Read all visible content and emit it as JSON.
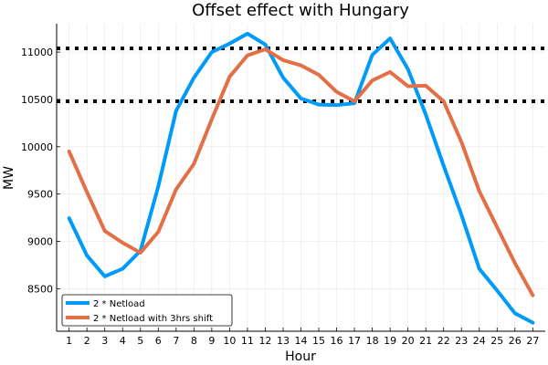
{
  "chart_data": {
    "type": "line",
    "title": "Offset effect with Hungary",
    "xlabel": "Hour",
    "ylabel": "MW",
    "x": [
      1,
      2,
      3,
      4,
      5,
      6,
      7,
      8,
      9,
      10,
      11,
      12,
      13,
      14,
      15,
      16,
      17,
      18,
      19,
      20,
      21,
      22,
      23,
      24,
      25,
      26,
      27
    ],
    "xlim": [
      0.3,
      27.7
    ],
    "ylim": [
      8050,
      11300
    ],
    "yticks": [
      8500,
      9000,
      9500,
      10000,
      10500,
      11000
    ],
    "grid": true,
    "legend_position": "bottom-left",
    "series": [
      {
        "name": "2 * Netload",
        "color": "#009af9",
        "values": [
          9245,
          8850,
          8630,
          8710,
          8900,
          9580,
          10380,
          10730,
          11000,
          11090,
          11195,
          11080,
          10730,
          10510,
          10445,
          10440,
          10460,
          10970,
          11145,
          10820,
          10340,
          9800,
          9280,
          8710,
          8480,
          8240,
          8140
        ]
      },
      {
        "name": "2 * Netload with 3hrs shift",
        "color": "#e26f46",
        "values": [
          9950,
          9520,
          9110,
          8985,
          8880,
          9100,
          9550,
          9820,
          10290,
          10740,
          10965,
          11030,
          10915,
          10860,
          10760,
          10580,
          10480,
          10700,
          10790,
          10640,
          10645,
          10480,
          10050,
          9530,
          9150,
          8770,
          8430
        ]
      }
    ],
    "reference_lines": [
      {
        "y": 11040,
        "style": "dotted",
        "color": "#000000"
      },
      {
        "y": 10480,
        "style": "dotted",
        "color": "#000000"
      }
    ]
  }
}
